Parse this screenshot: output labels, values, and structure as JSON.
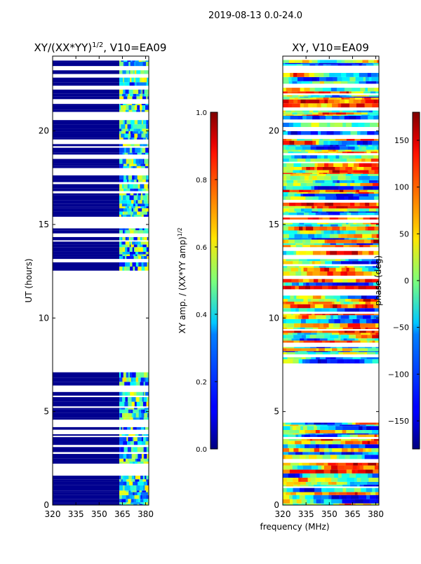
{
  "figure_title": "2019-08-13 0.0-24.0",
  "colors": {
    "background": "#ffffff",
    "axis": "#000000",
    "amp_background": "#00008f",
    "jet_low": "#00007f",
    "jet_high": "#7f0000"
  },
  "chart_data": [
    {
      "type": "heatmap",
      "title_prefix": "XY/(XX*YY)",
      "title_power": "1/2",
      "title_suffix": ", V10=EA09",
      "xlabel": "",
      "ylabel": "UT (hours)",
      "xlim": [
        320,
        382
      ],
      "ylim": [
        0,
        24
      ],
      "xticks": [
        320,
        335,
        350,
        365,
        380
      ],
      "yticks": [
        0,
        5,
        10,
        15,
        20
      ],
      "data_gap_hours": [
        7.3,
        12.3
      ],
      "colorbar": {
        "label_prefix": "XY amp. / (XX*YY amp)",
        "label_power": "1/2",
        "range": [
          0.0,
          1.0
        ],
        "ticks": [
          "0.0",
          "0.2",
          "0.4",
          "0.6",
          "0.8",
          "1.0"
        ]
      }
    },
    {
      "type": "heatmap",
      "title": "XY, V10=EA09",
      "xlabel": "frequency (MHz)",
      "ylabel": "",
      "xlim": [
        320,
        382
      ],
      "ylim": [
        0,
        24
      ],
      "xticks": [
        320,
        335,
        350,
        365,
        380
      ],
      "yticks": [
        0,
        5,
        10,
        15,
        20
      ],
      "data_gap_hours": [
        4.3,
        7.5
      ],
      "colorbar": {
        "label": "phase (deg)",
        "range": [
          -180,
          180
        ],
        "ticks": [
          "150",
          "100",
          "50",
          "0",
          "−50",
          "−100",
          "−150"
        ]
      }
    }
  ]
}
